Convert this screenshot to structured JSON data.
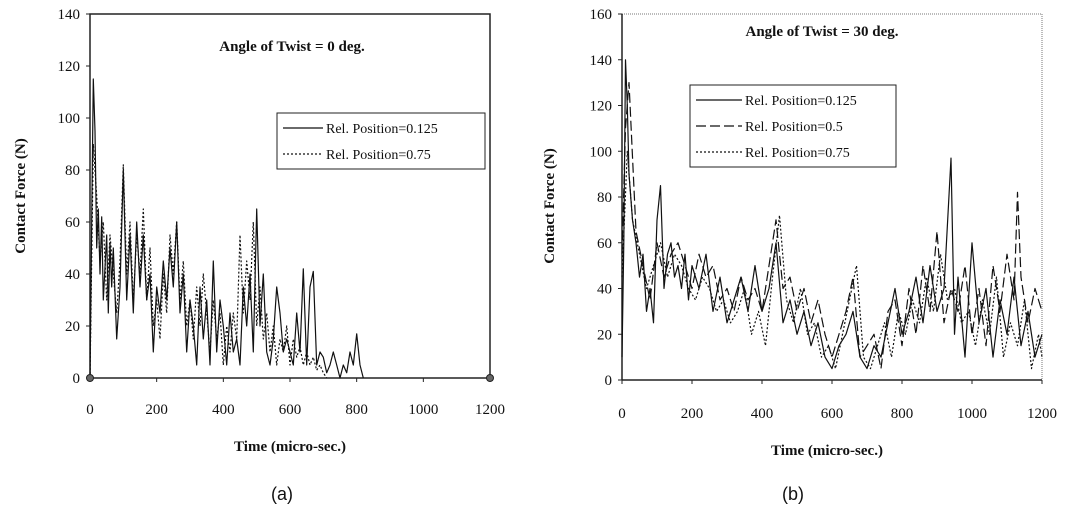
{
  "chart_data": [
    {
      "type": "line",
      "title": "Angle of Twist = 0 deg.",
      "xlabel": "Time (micro-sec.)",
      "ylabel": "Contact  Force (N)",
      "xlim": [
        0,
        1200
      ],
      "ylim": [
        0,
        140
      ],
      "xticks": [
        0,
        200,
        400,
        600,
        800,
        1000,
        1200
      ],
      "yticks": [
        0,
        20,
        40,
        60,
        80,
        100,
        120,
        140
      ],
      "grid": false,
      "legend_position": "right",
      "panel_label": "(a)",
      "series": [
        {
          "name": "Rel. Position=0.125",
          "style": "solid",
          "x": [
            0,
            5,
            10,
            15,
            20,
            25,
            30,
            35,
            40,
            50,
            55,
            60,
            65,
            70,
            80,
            90,
            100,
            110,
            120,
            130,
            140,
            150,
            160,
            170,
            180,
            190,
            200,
            210,
            220,
            230,
            240,
            250,
            260,
            270,
            280,
            290,
            300,
            310,
            320,
            330,
            340,
            350,
            360,
            370,
            380,
            390,
            400,
            410,
            420,
            430,
            440,
            450,
            460,
            470,
            480,
            490,
            500,
            510,
            520,
            530,
            540,
            550,
            560,
            570,
            580,
            590,
            600,
            610,
            620,
            630,
            640,
            650,
            660,
            670,
            680,
            690,
            700,
            710,
            720,
            730,
            740,
            750,
            760,
            770,
            780,
            790,
            800,
            810,
            820
          ],
          "y": [
            0,
            60,
            115,
            95,
            50,
            65,
            40,
            62,
            30,
            55,
            25,
            52,
            35,
            50,
            15,
            35,
            80,
            30,
            55,
            25,
            60,
            35,
            55,
            30,
            40,
            10,
            35,
            25,
            45,
            30,
            50,
            35,
            60,
            25,
            40,
            10,
            30,
            20,
            5,
            35,
            15,
            30,
            5,
            45,
            10,
            30,
            20,
            5,
            25,
            10,
            15,
            5,
            35,
            20,
            40,
            10,
            65,
            20,
            40,
            10,
            5,
            15,
            35,
            25,
            10,
            15,
            10,
            5,
            25,
            10,
            42,
            5,
            35,
            41,
            5,
            10,
            8,
            2,
            5,
            10,
            5,
            0,
            5,
            2,
            10,
            5,
            17,
            5,
            0
          ]
        },
        {
          "name": "Rel. Position=0.75",
          "style": "dotted",
          "x": [
            0,
            10,
            20,
            30,
            40,
            50,
            60,
            70,
            80,
            90,
            100,
            110,
            120,
            130,
            140,
            150,
            160,
            170,
            180,
            190,
            200,
            210,
            220,
            230,
            240,
            250,
            260,
            270,
            280,
            290,
            300,
            310,
            320,
            330,
            340,
            350,
            360,
            370,
            380,
            390,
            400,
            410,
            420,
            430,
            440,
            450,
            460,
            470,
            480,
            490,
            500,
            510,
            520,
            530,
            540,
            550,
            560,
            570,
            580,
            590,
            600,
            610,
            620,
            630,
            640,
            650,
            660,
            670,
            680,
            690,
            700,
            710
          ],
          "y": [
            0,
            90,
            70,
            45,
            60,
            30,
            55,
            40,
            25,
            45,
            82,
            40,
            60,
            30,
            55,
            40,
            65,
            30,
            50,
            20,
            30,
            15,
            40,
            25,
            55,
            40,
            60,
            30,
            45,
            20,
            30,
            15,
            35,
            20,
            40,
            25,
            10,
            30,
            15,
            25,
            5,
            20,
            10,
            25,
            15,
            55,
            25,
            45,
            30,
            60,
            20,
            35,
            15,
            25,
            10,
            20,
            5,
            15,
            10,
            20,
            5,
            15,
            8,
            12,
            5,
            10,
            5,
            8,
            3,
            5,
            2,
            0
          ]
        }
      ]
    },
    {
      "type": "line",
      "title": "Angle of Twist = 30 deg.",
      "xlabel": "Time (micro-sec.)",
      "ylabel": "Contact  Force (N)",
      "xlim": [
        0,
        1200
      ],
      "ylim": [
        0,
        160
      ],
      "xticks": [
        0,
        200,
        400,
        600,
        800,
        1000,
        1200
      ],
      "yticks": [
        0,
        20,
        40,
        60,
        80,
        100,
        120,
        140,
        160
      ],
      "grid": false,
      "legend_position": "top-left",
      "panel_label": "(b)",
      "series": [
        {
          "name": "Rel. Position=0.125",
          "style": "solid",
          "x": [
            0,
            5,
            10,
            15,
            20,
            30,
            40,
            50,
            60,
            70,
            80,
            90,
            100,
            110,
            120,
            130,
            140,
            150,
            160,
            170,
            180,
            190,
            200,
            220,
            240,
            260,
            280,
            300,
            320,
            340,
            360,
            380,
            400,
            420,
            440,
            460,
            480,
            500,
            520,
            540,
            560,
            580,
            600,
            620,
            640,
            660,
            680,
            700,
            720,
            740,
            760,
            780,
            800,
            820,
            840,
            860,
            880,
            900,
            920,
            940,
            950,
            960,
            980,
            1000,
            1020,
            1040,
            1060,
            1080,
            1100,
            1120,
            1140,
            1160,
            1180,
            1200
          ],
          "y": [
            10,
            60,
            140,
            120,
            90,
            70,
            60,
            45,
            55,
            30,
            40,
            25,
            70,
            85,
            40,
            55,
            60,
            45,
            50,
            40,
            55,
            35,
            50,
            40,
            55,
            30,
            45,
            25,
            35,
            45,
            30,
            50,
            30,
            40,
            60,
            25,
            35,
            20,
            30,
            15,
            25,
            10,
            5,
            15,
            20,
            30,
            10,
            5,
            15,
            10,
            25,
            40,
            20,
            30,
            45,
            25,
            50,
            30,
            40,
            97,
            20,
            45,
            10,
            60,
            25,
            40,
            10,
            35,
            20,
            45,
            15,
            30,
            10,
            20
          ]
        },
        {
          "name": "Rel. Position=0.5",
          "style": "dashed",
          "x": [
            0,
            10,
            20,
            40,
            60,
            80,
            100,
            120,
            140,
            160,
            180,
            200,
            220,
            240,
            260,
            280,
            300,
            320,
            340,
            360,
            380,
            400,
            420,
            440,
            460,
            480,
            500,
            520,
            540,
            560,
            580,
            600,
            620,
            640,
            660,
            680,
            700,
            720,
            740,
            760,
            780,
            800,
            820,
            840,
            860,
            880,
            900,
            920,
            940,
            960,
            980,
            1000,
            1020,
            1040,
            1060,
            1080,
            1100,
            1120,
            1130,
            1140,
            1160,
            1180,
            1200
          ],
          "y": [
            55,
            110,
            130,
            65,
            50,
            35,
            60,
            45,
            55,
            60,
            50,
            40,
            55,
            45,
            50,
            35,
            40,
            30,
            45,
            35,
            40,
            30,
            50,
            70,
            40,
            45,
            30,
            40,
            25,
            35,
            20,
            10,
            20,
            30,
            45,
            10,
            15,
            20,
            5,
            30,
            35,
            15,
            40,
            20,
            50,
            30,
            65,
            25,
            40,
            30,
            50,
            20,
            40,
            15,
            50,
            30,
            55,
            35,
            82,
            45,
            25,
            40,
            30
          ]
        },
        {
          "name": "Rel. Position=0.75",
          "style": "dotted",
          "x": [
            0,
            15,
            30,
            50,
            70,
            90,
            110,
            130,
            150,
            170,
            190,
            210,
            230,
            250,
            270,
            290,
            310,
            330,
            350,
            370,
            390,
            410,
            430,
            450,
            470,
            490,
            510,
            530,
            550,
            570,
            590,
            610,
            630,
            650,
            670,
            690,
            710,
            730,
            750,
            770,
            790,
            810,
            830,
            850,
            870,
            890,
            910,
            930,
            950,
            970,
            990,
            1010,
            1030,
            1050,
            1070,
            1090,
            1110,
            1130,
            1150,
            1170,
            1190,
            1200
          ],
          "y": [
            45,
            100,
            70,
            55,
            40,
            50,
            60,
            45,
            55,
            50,
            40,
            35,
            45,
            40,
            30,
            35,
            25,
            30,
            40,
            20,
            30,
            15,
            45,
            72,
            35,
            25,
            40,
            20,
            25,
            10,
            15,
            5,
            20,
            35,
            50,
            10,
            5,
            15,
            25,
            10,
            30,
            20,
            35,
            25,
            45,
            30,
            55,
            35,
            40,
            25,
            30,
            15,
            35,
            20,
            45,
            10,
            25,
            15,
            35,
            5,
            20,
            10
          ]
        }
      ]
    }
  ]
}
